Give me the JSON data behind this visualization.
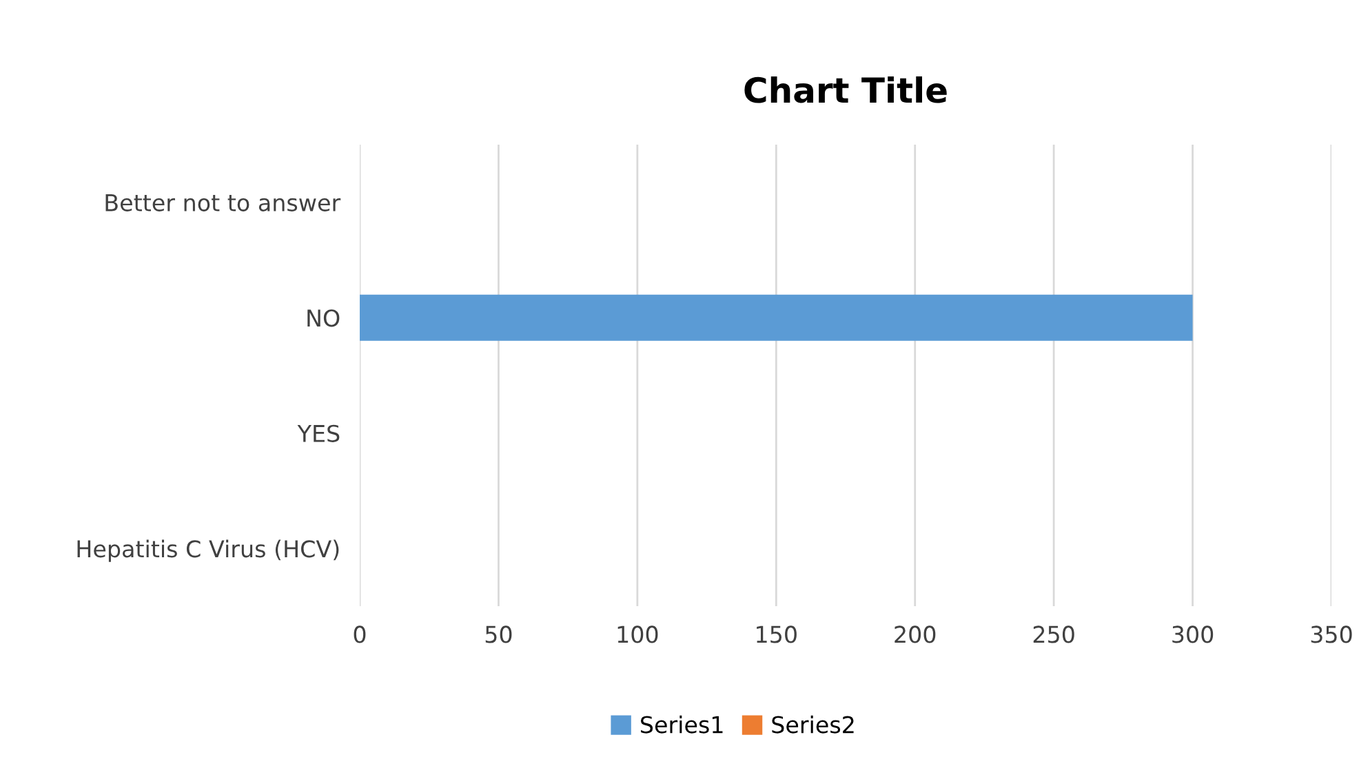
{
  "chart_data": {
    "type": "bar",
    "orientation": "horizontal",
    "title": "Chart Title",
    "categories": [
      "Better not to answer",
      "NO",
      "YES",
      "Hepatitis C Virus (HCV)"
    ],
    "series": [
      {
        "name": "Series1",
        "color": "#5b9bd5",
        "values": [
          null,
          300,
          null,
          null
        ]
      },
      {
        "name": "Series2",
        "color": "#ed7d31",
        "values": [
          null,
          null,
          null,
          null
        ]
      }
    ],
    "xlim": [
      0,
      350
    ],
    "xticks": [
      0,
      50,
      100,
      150,
      200,
      250,
      300,
      350
    ],
    "grid": "x",
    "legend": "bottom"
  }
}
